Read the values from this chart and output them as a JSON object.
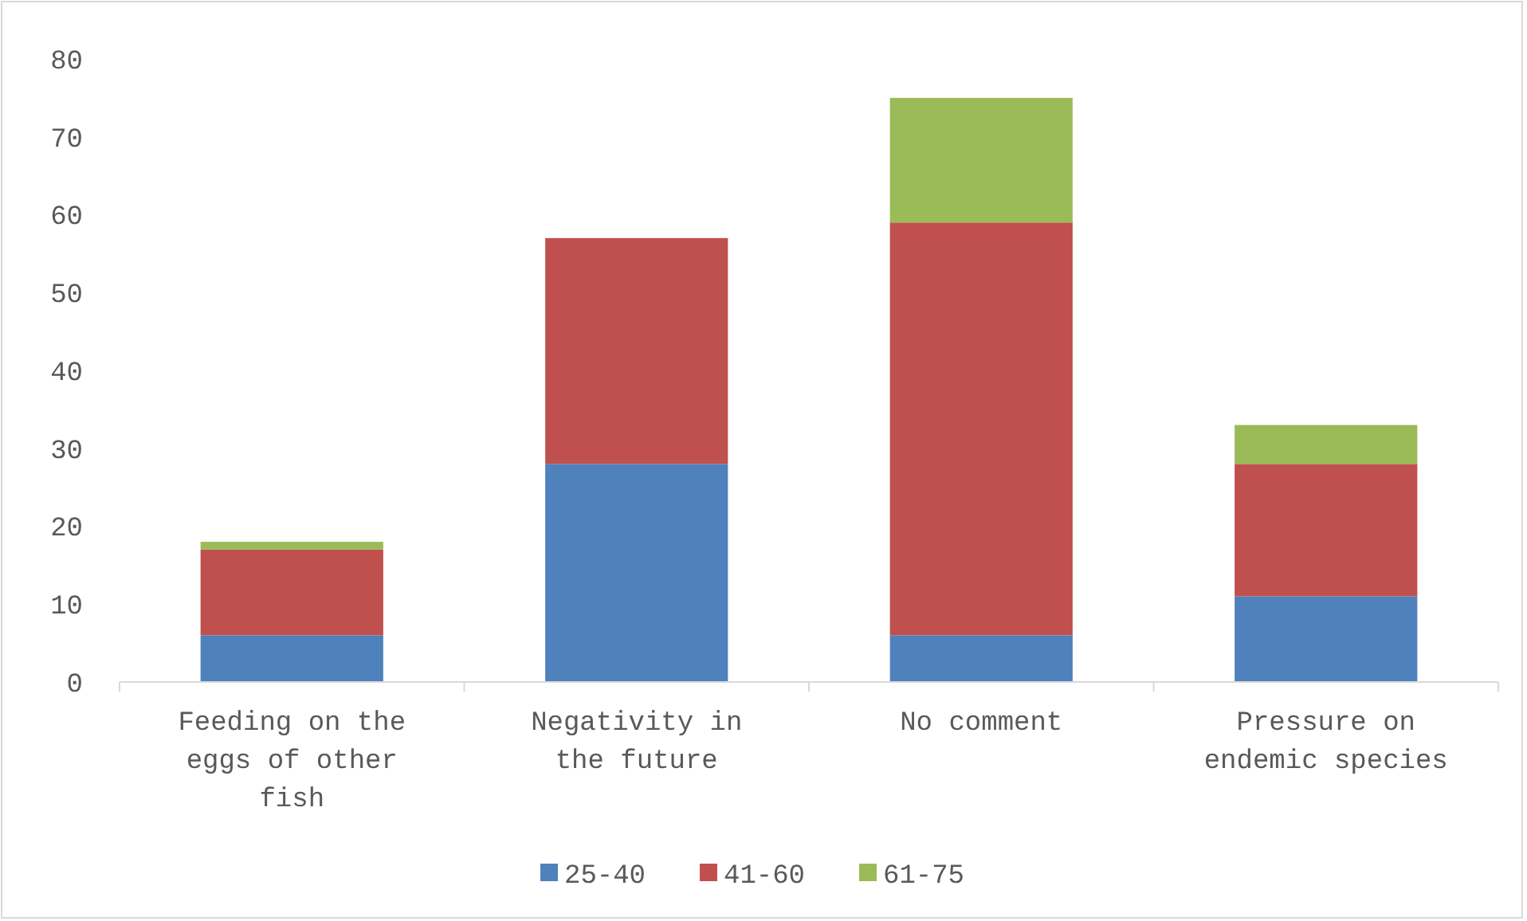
{
  "chart_data": {
    "type": "bar",
    "stacked": true,
    "categories": [
      "Feeding on the eggs of other fish",
      "Negativity in the future",
      "No comment",
      "Pressure on endemic species"
    ],
    "series": [
      {
        "name": "25-40",
        "color": "#4f81bd",
        "values": [
          6,
          28,
          6,
          11
        ]
      },
      {
        "name": "41-60",
        "color": "#c0504d",
        "values": [
          11,
          29,
          53,
          17
        ]
      },
      {
        "name": "61-75",
        "color": "#9bbb59",
        "values": [
          1,
          0,
          16,
          5
        ]
      }
    ],
    "ylim": [
      0,
      80
    ],
    "yticks": [
      0,
      10,
      20,
      30,
      40,
      50,
      60,
      70,
      80
    ],
    "grid": false,
    "legend": "bottom"
  }
}
